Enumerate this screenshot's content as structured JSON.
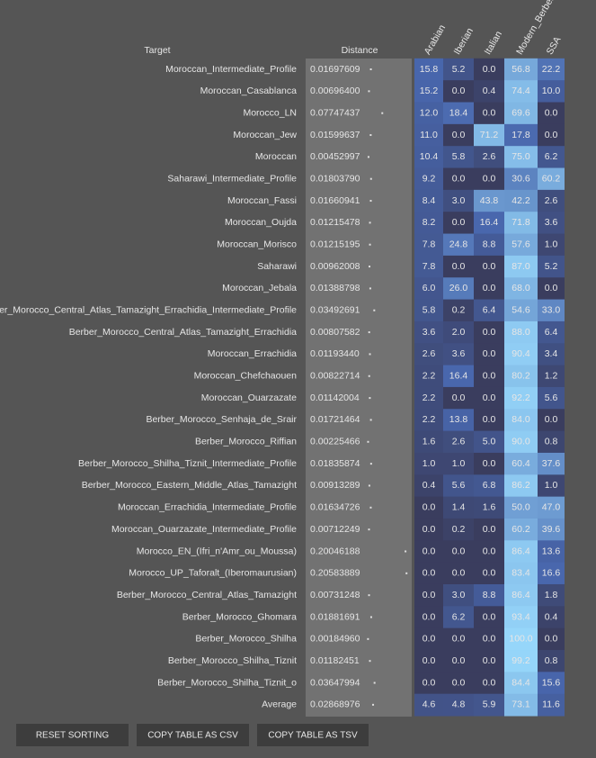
{
  "table": {
    "headers": {
      "target": "Target",
      "distance": "Distance",
      "columns": [
        "Arabian",
        "Iberian",
        "Italian",
        "Modern_Berber",
        "SSA"
      ]
    },
    "rows": [
      {
        "target": "Moroccan_Intermediate_Profile",
        "distance": "0.01697609",
        "values": [
          "15.8",
          "5.2",
          "0.0",
          "56.8",
          "22.2"
        ]
      },
      {
        "target": "Moroccan_Casablanca",
        "distance": "0.00696400",
        "values": [
          "15.2",
          "0.0",
          "0.4",
          "74.4",
          "10.0"
        ]
      },
      {
        "target": "Morocco_LN",
        "distance": "0.07747437",
        "values": [
          "12.0",
          "18.4",
          "0.0",
          "69.6",
          "0.0"
        ]
      },
      {
        "target": "Moroccan_Jew",
        "distance": "0.01599637",
        "values": [
          "11.0",
          "0.0",
          "71.2",
          "17.8",
          "0.0"
        ]
      },
      {
        "target": "Moroccan",
        "distance": "0.00452997",
        "values": [
          "10.4",
          "5.8",
          "2.6",
          "75.0",
          "6.2"
        ]
      },
      {
        "target": "Saharawi_Intermediate_Profile",
        "distance": "0.01803790",
        "values": [
          "9.2",
          "0.0",
          "0.0",
          "30.6",
          "60.2"
        ]
      },
      {
        "target": "Moroccan_Fassi",
        "distance": "0.01660941",
        "values": [
          "8.4",
          "3.0",
          "43.8",
          "42.2",
          "2.6"
        ]
      },
      {
        "target": "Moroccan_Oujda",
        "distance": "0.01215478",
        "values": [
          "8.2",
          "0.0",
          "16.4",
          "71.8",
          "3.6"
        ]
      },
      {
        "target": "Moroccan_Morisco",
        "distance": "0.01215195",
        "values": [
          "7.8",
          "24.8",
          "8.8",
          "57.6",
          "1.0"
        ]
      },
      {
        "target": "Saharawi",
        "distance": "0.00962008",
        "values": [
          "7.8",
          "0.0",
          "0.0",
          "87.0",
          "5.2"
        ]
      },
      {
        "target": "Moroccan_Jebala",
        "distance": "0.01388798",
        "values": [
          "6.0",
          "26.0",
          "0.0",
          "68.0",
          "0.0"
        ]
      },
      {
        "target": "Berber_Morocco_Central_Atlas_Tamazight_Errachidia_Intermediate_Profile",
        "distance": "0.03492691",
        "values": [
          "5.8",
          "0.2",
          "6.4",
          "54.6",
          "33.0"
        ]
      },
      {
        "target": "Berber_Morocco_Central_Atlas_Tamazight_Errachidia",
        "distance": "0.00807582",
        "values": [
          "3.6",
          "2.0",
          "0.0",
          "88.0",
          "6.4"
        ]
      },
      {
        "target": "Moroccan_Errachidia",
        "distance": "0.01193440",
        "values": [
          "2.6",
          "3.6",
          "0.0",
          "90.4",
          "3.4"
        ]
      },
      {
        "target": "Moroccan_Chefchaouen",
        "distance": "0.00822714",
        "values": [
          "2.2",
          "16.4",
          "0.0",
          "80.2",
          "1.2"
        ]
      },
      {
        "target": "Moroccan_Ouarzazate",
        "distance": "0.01142004",
        "values": [
          "2.2",
          "0.0",
          "0.0",
          "92.2",
          "5.6"
        ]
      },
      {
        "target": "Berber_Morocco_Senhaja_de_Srair",
        "distance": "0.01721464",
        "values": [
          "2.2",
          "13.8",
          "0.0",
          "84.0",
          "0.0"
        ]
      },
      {
        "target": "Berber_Morocco_Riffian",
        "distance": "0.00225466",
        "values": [
          "1.6",
          "2.6",
          "5.0",
          "90.0",
          "0.8"
        ]
      },
      {
        "target": "Berber_Morocco_Shilha_Tiznit_Intermediate_Profile",
        "distance": "0.01835874",
        "values": [
          "1.0",
          "1.0",
          "0.0",
          "60.4",
          "37.6"
        ]
      },
      {
        "target": "Berber_Morocco_Eastern_Middle_Atlas_Tamazight",
        "distance": "0.00913289",
        "values": [
          "0.4",
          "5.6",
          "6.8",
          "86.2",
          "1.0"
        ]
      },
      {
        "target": "Moroccan_Errachidia_Intermediate_Profile",
        "distance": "0.01634726",
        "values": [
          "0.0",
          "1.4",
          "1.6",
          "50.0",
          "47.0"
        ]
      },
      {
        "target": "Moroccan_Ouarzazate_Intermediate_Profile",
        "distance": "0.00712249",
        "values": [
          "0.0",
          "0.2",
          "0.0",
          "60.2",
          "39.6"
        ]
      },
      {
        "target": "Morocco_EN_(Ifri_n'Amr_ou_Moussa)",
        "distance": "0.20046188",
        "values": [
          "0.0",
          "0.0",
          "0.0",
          "86.4",
          "13.6"
        ]
      },
      {
        "target": "Morocco_UP_Taforalt_(Iberomaurusian)",
        "distance": "0.20583889",
        "values": [
          "0.0",
          "0.0",
          "0.0",
          "83.4",
          "16.6"
        ]
      },
      {
        "target": "Berber_Morocco_Central_Atlas_Tamazight",
        "distance": "0.00731248",
        "values": [
          "0.0",
          "3.0",
          "8.8",
          "86.4",
          "1.8"
        ]
      },
      {
        "target": "Berber_Morocco_Ghomara",
        "distance": "0.01881691",
        "values": [
          "0.0",
          "6.2",
          "0.0",
          "93.4",
          "0.4"
        ]
      },
      {
        "target": "Berber_Morocco_Shilha",
        "distance": "0.00184960",
        "values": [
          "0.0",
          "0.0",
          "0.0",
          "100.0",
          "0.0"
        ]
      },
      {
        "target": "Berber_Morocco_Shilha_Tiznit",
        "distance": "0.01182451",
        "values": [
          "0.0",
          "0.0",
          "0.0",
          "99.2",
          "0.8"
        ]
      },
      {
        "target": "Berber_Morocco_Shilha_Tiznit_o",
        "distance": "0.03647994",
        "values": [
          "0.0",
          "0.0",
          "0.0",
          "84.4",
          "15.6"
        ]
      },
      {
        "target": "Average",
        "distance": "0.02868976",
        "values": [
          "4.6",
          "4.8",
          "5.9",
          "73.1",
          "11.6"
        ]
      }
    ]
  },
  "buttons": [
    "RESET SORTING",
    "COPY TABLE AS CSV",
    "COPY TABLE AS TSV"
  ]
}
